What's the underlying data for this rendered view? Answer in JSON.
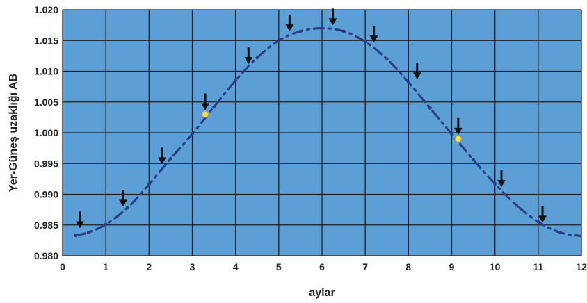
{
  "chart_data": {
    "type": "line",
    "xlabel": "aylar",
    "ylabel": "Yer-Güneş uzaklığı  AB",
    "xlim": [
      0,
      12
    ],
    "ylim": [
      0.98,
      1.02
    ],
    "x_ticks": [
      "0",
      "1",
      "2",
      "3",
      "4",
      "5",
      "6",
      "7",
      "8",
      "9",
      "10",
      "11",
      "12"
    ],
    "y_ticks": [
      "0.980",
      "0.985",
      "0.990",
      "0.995",
      "1.000",
      "1.005",
      "1.010",
      "1.015",
      "1.020"
    ],
    "grid": true,
    "plot_background": "#5b9fd6",
    "line_color": "#2b3f86",
    "series": [
      {
        "values": [
          {
            "x": 0.3,
            "y": 0.9833
          },
          {
            "x": 0.6,
            "y": 0.9838
          },
          {
            "x": 1.0,
            "y": 0.9851
          },
          {
            "x": 1.5,
            "y": 0.9878
          },
          {
            "x": 2.0,
            "y": 0.9916
          },
          {
            "x": 2.5,
            "y": 0.9958
          },
          {
            "x": 3.0,
            "y": 0.9998
          },
          {
            "x": 3.5,
            "y": 1.0042
          },
          {
            "x": 4.0,
            "y": 1.0085
          },
          {
            "x": 4.5,
            "y": 1.0122
          },
          {
            "x": 5.0,
            "y": 1.015
          },
          {
            "x": 5.5,
            "y": 1.0165
          },
          {
            "x": 6.0,
            "y": 1.017
          },
          {
            "x": 6.5,
            "y": 1.0165
          },
          {
            "x": 7.0,
            "y": 1.0148
          },
          {
            "x": 7.5,
            "y": 1.012
          },
          {
            "x": 8.0,
            "y": 1.0082
          },
          {
            "x": 8.5,
            "y": 1.004
          },
          {
            "x": 9.0,
            "y": 0.9998
          },
          {
            "x": 9.5,
            "y": 0.9956
          },
          {
            "x": 10.0,
            "y": 0.9917
          },
          {
            "x": 10.5,
            "y": 0.9882
          },
          {
            "x": 11.0,
            "y": 0.9855
          },
          {
            "x": 11.5,
            "y": 0.9838
          },
          {
            "x": 12.0,
            "y": 0.9832
          }
        ]
      }
    ],
    "highlight_points": [
      {
        "x": 3.3,
        "y": 1.003,
        "color": "#f2e25a"
      },
      {
        "x": 9.15,
        "y": 0.999,
        "color": "#f2e25a"
      }
    ],
    "arrow_markers": [
      {
        "x": 0.4,
        "y": 0.9838
      },
      {
        "x": 1.4,
        "y": 0.9873
      },
      {
        "x": 2.3,
        "y": 0.9942
      },
      {
        "x": 3.3,
        "y": 1.003
      },
      {
        "x": 4.3,
        "y": 1.0105
      },
      {
        "x": 5.25,
        "y": 1.0158
      },
      {
        "x": 6.25,
        "y": 1.0168
      },
      {
        "x": 7.2,
        "y": 1.014
      },
      {
        "x": 8.2,
        "y": 1.008
      },
      {
        "x": 9.15,
        "y": 0.999
      },
      {
        "x": 10.15,
        "y": 0.9905
      },
      {
        "x": 11.1,
        "y": 0.9847
      }
    ]
  }
}
